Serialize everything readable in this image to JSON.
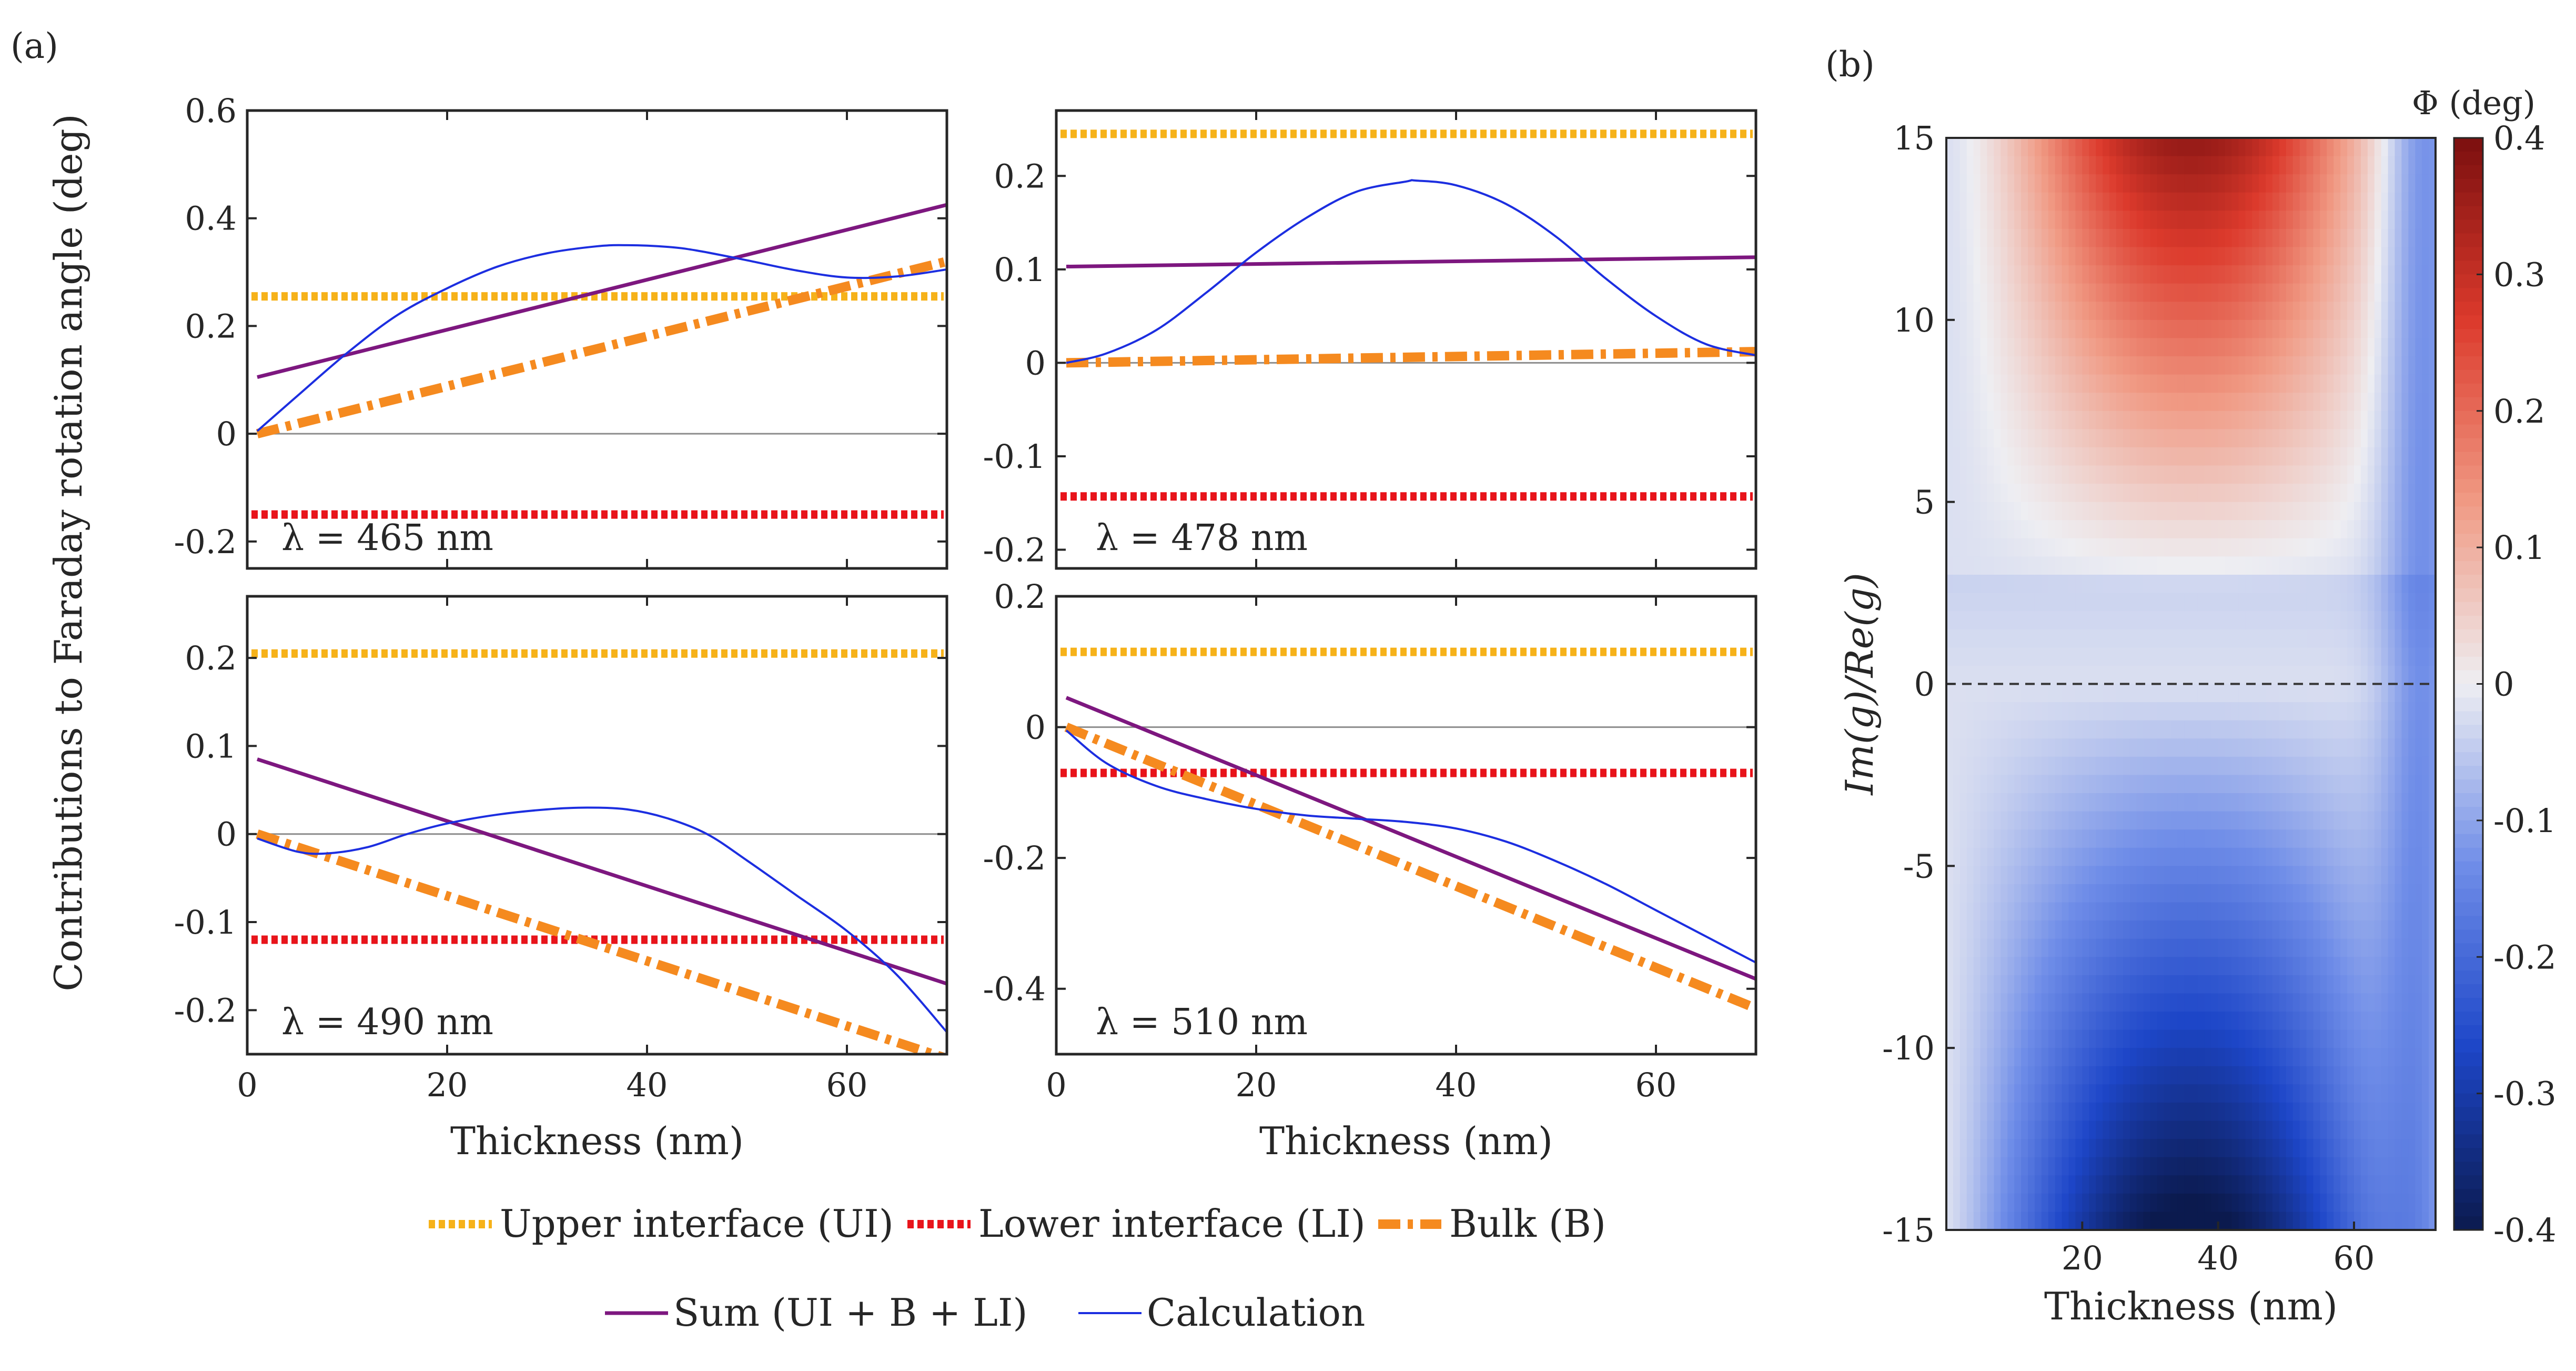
{
  "figure": {
    "panel_a_label": "(a)",
    "panel_b_label": "(b)",
    "shared_ylabel": "Contributions to Faraday rotation angle (deg)"
  },
  "colors": {
    "ui": "#F6B21A",
    "li": "#E8141B",
    "bulk": "#F58A1F",
    "sum": "#7D177F",
    "calc": "#1C2EE0",
    "zero": "#8c8c8c",
    "axes": "#262626"
  },
  "legend": {
    "ui": "Upper interface (UI)",
    "li": "Lower interface (LI)",
    "bulk": "Bulk (B)",
    "sum": "Sum (UI + B + LI)",
    "calc": "Calculation"
  },
  "chart_data": [
    {
      "id": "a1",
      "type": "line",
      "annotation": "λ = 465 nm",
      "xlabel": "",
      "xlim": [
        0,
        70
      ],
      "ylim": [
        -0.25,
        0.6
      ],
      "xticks": [
        0,
        20,
        40,
        60
      ],
      "xtick_labels": [
        "",
        "",
        "",
        ""
      ],
      "yticks": [
        -0.2,
        0,
        0.2,
        0.4,
        0.6
      ],
      "ytick_labels": [
        "-0.2",
        "0",
        "0.2",
        "0.4",
        "0.6"
      ],
      "ui": 0.255,
      "li": -0.15,
      "bulk": {
        "x": [
          1,
          70
        ],
        "y": [
          0.0,
          0.32
        ]
      },
      "sum": {
        "x": [
          1,
          70
        ],
        "y": [
          0.105,
          0.425
        ]
      },
      "calc": {
        "x": [
          1,
          5,
          10,
          15,
          20,
          25,
          30,
          35,
          38,
          42,
          45,
          50,
          55,
          60,
          65,
          70
        ],
        "y": [
          0.005,
          0.07,
          0.15,
          0.22,
          0.27,
          0.31,
          0.335,
          0.348,
          0.35,
          0.347,
          0.34,
          0.322,
          0.303,
          0.29,
          0.292,
          0.305
        ]
      }
    },
    {
      "id": "a2",
      "type": "line",
      "annotation": "λ = 478 nm",
      "xlabel": "",
      "xlim": [
        0,
        70
      ],
      "ylim": [
        -0.22,
        0.27
      ],
      "xticks": [
        0,
        20,
        40,
        60
      ],
      "xtick_labels": [
        "",
        "",
        "",
        ""
      ],
      "yticks": [
        -0.2,
        -0.1,
        0,
        0.1,
        0.2
      ],
      "ytick_labels": [
        "-0.2",
        "-0.1",
        "0",
        "0.1",
        "0.2"
      ],
      "ui": 0.245,
      "li": -0.143,
      "bulk": {
        "x": [
          1,
          70
        ],
        "y": [
          0.0,
          0.012
        ]
      },
      "sum": {
        "x": [
          1,
          70
        ],
        "y": [
          0.103,
          0.113
        ]
      },
      "calc": {
        "x": [
          1,
          5,
          10,
          15,
          20,
          25,
          30,
          35,
          36,
          40,
          45,
          50,
          55,
          60,
          65,
          70
        ],
        "y": [
          0.0,
          0.01,
          0.035,
          0.075,
          0.118,
          0.155,
          0.183,
          0.194,
          0.195,
          0.19,
          0.17,
          0.135,
          0.09,
          0.05,
          0.02,
          0.008
        ]
      }
    },
    {
      "id": "a3",
      "type": "line",
      "annotation": "λ = 490 nm",
      "xlabel": "Thickness (nm)",
      "xlim": [
        0,
        70
      ],
      "ylim": [
        -0.25,
        0.27
      ],
      "xticks": [
        0,
        20,
        40,
        60
      ],
      "xtick_labels": [
        "0",
        "20",
        "40",
        "60"
      ],
      "yticks": [
        -0.2,
        -0.1,
        0,
        0.1,
        0.2
      ],
      "ytick_labels": [
        "-0.2",
        "-0.1",
        "0",
        "0.1",
        "0.2"
      ],
      "ui": 0.205,
      "li": -0.12,
      "bulk": {
        "x": [
          1,
          70
        ],
        "y": [
          0.0,
          -0.255
        ]
      },
      "sum": {
        "x": [
          1,
          70
        ],
        "y": [
          0.085,
          -0.17
        ]
      },
      "calc": {
        "x": [
          1,
          5,
          8,
          12,
          16,
          20,
          25,
          30,
          34,
          38,
          42,
          46,
          50,
          55,
          60,
          65,
          70
        ],
        "y": [
          -0.005,
          -0.02,
          -0.022,
          -0.015,
          0.0,
          0.012,
          0.022,
          0.028,
          0.03,
          0.028,
          0.018,
          0.0,
          -0.03,
          -0.07,
          -0.11,
          -0.16,
          -0.225
        ]
      }
    },
    {
      "id": "a4",
      "type": "line",
      "annotation": "λ = 510 nm",
      "xlabel": "Thickness (nm)",
      "xlim": [
        0,
        70
      ],
      "ylim": [
        -0.5,
        0.2
      ],
      "xticks": [
        0,
        20,
        40,
        60
      ],
      "xtick_labels": [
        "0",
        "20",
        "40",
        "60"
      ],
      "yticks": [
        -0.4,
        -0.2,
        0,
        0.2
      ],
      "ytick_labels": [
        "-0.4",
        "-0.2",
        "0",
        "0.2"
      ],
      "ui": 0.115,
      "li": -0.07,
      "bulk": {
        "x": [
          1,
          70
        ],
        "y": [
          0.0,
          -0.43
        ]
      },
      "sum": {
        "x": [
          1,
          70
        ],
        "y": [
          0.045,
          -0.385
        ]
      },
      "calc": {
        "x": [
          1,
          5,
          10,
          15,
          20,
          25,
          30,
          35,
          40,
          45,
          50,
          55,
          60,
          65,
          70
        ],
        "y": [
          -0.005,
          -0.055,
          -0.09,
          -0.11,
          -0.125,
          -0.135,
          -0.14,
          -0.145,
          -0.155,
          -0.175,
          -0.205,
          -0.24,
          -0.28,
          -0.32,
          -0.36
        ]
      }
    },
    {
      "id": "b",
      "type": "heatmap",
      "xlabel": "Thickness (nm)",
      "ylabel": "Im(g)/Re(g)",
      "xlim": [
        0,
        72
      ],
      "ylim": [
        -15,
        15
      ],
      "xticks": [
        20,
        40,
        60
      ],
      "xtick_labels": [
        "20",
        "40",
        "60"
      ],
      "yticks": [
        -15,
        -10,
        -5,
        0,
        5,
        10,
        15
      ],
      "ytick_labels": [
        "-15",
        "-10",
        "-5",
        "0",
        "5",
        "10",
        "15"
      ],
      "dashed_line_y": 0,
      "colorbar": {
        "title": "Φ (deg)",
        "range": [
          -0.4,
          0.4
        ],
        "ticks": [
          -0.4,
          -0.3,
          -0.2,
          -0.1,
          0,
          0.1,
          0.2,
          0.3,
          0.4
        ],
        "tick_labels": [
          "-0.4",
          "-0.3",
          "-0.2",
          "-0.1",
          "0",
          "0.1",
          "0.2",
          "0.3",
          "0.4"
        ],
        "colors": [
          "#0b1a4e",
          "#1d46c8",
          "#6f8de8",
          "#eeeef2",
          "#f09a84",
          "#dc3a2c",
          "#7b0f0f"
        ]
      },
      "model": {
        "description": "approximate field: Phi(t, r) with peak near t = 36 nm",
        "peak_thickness": 36,
        "pos_peak": 0.38,
        "neg_peak": -0.4,
        "offset_slope": -0.0065
      }
    }
  ]
}
